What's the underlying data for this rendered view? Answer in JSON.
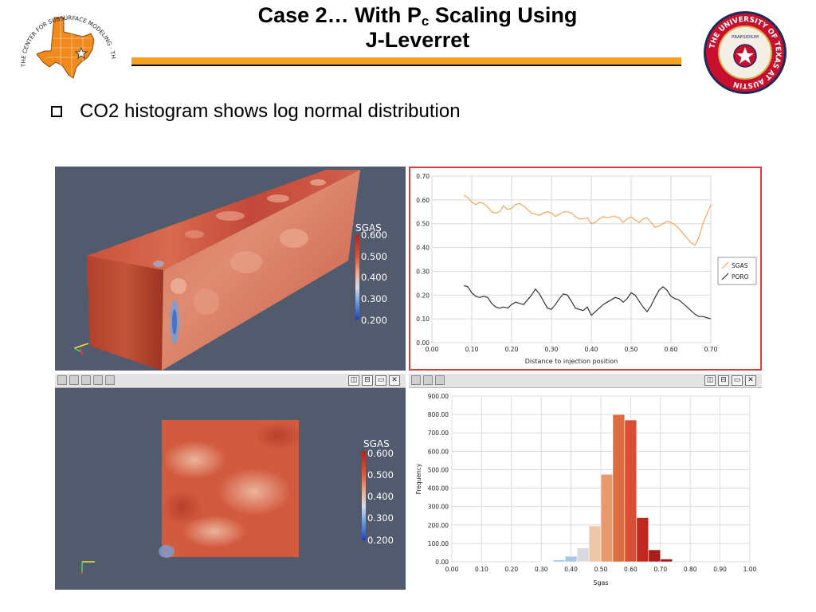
{
  "title": {
    "line1_pre": "Case 2… With P",
    "line1_sub": "c",
    "line1_post": " Scaling Using",
    "line2": "J-Leverret"
  },
  "bullet": "CO2 histogram shows log normal distribution",
  "logo_left": {
    "text": "THE CENTER FOR SUBSURFACE MODELING · THE UNIVERSITY OF TEXAS AT AUSTIN"
  },
  "logo_right": {
    "text": "THE UNIVERSITY OF TEXAS AT AUSTIN",
    "seal_text": "PRAESIDIUM"
  },
  "colors": {
    "accent_rule": "#f5a01e",
    "viewport_bg": "#525a6e",
    "plot_border": "#d93c3c",
    "sgas_line": "#f2a65a",
    "poro_line": "#333333",
    "ut_burnt_orange": "#bf5700",
    "ut_red": "#c8102e"
  },
  "viewport3d": {
    "legend_title": "SGAS",
    "legend_ticks": [
      "0.600",
      "0.500",
      "0.400",
      "0.300",
      "0.200"
    ]
  },
  "viewport2d": {
    "legend_title": "SGAS",
    "legend_ticks": [
      "0.600",
      "0.500",
      "0.400",
      "0.300",
      "0.200"
    ]
  },
  "toolbar_buttons": [
    "◫",
    "⊟",
    "▭",
    "✕"
  ],
  "chart_data": [
    {
      "type": "line",
      "xlabel": "Distance to injection position",
      "xlim": [
        0,
        0.7
      ],
      "ylim": [
        0,
        0.7
      ],
      "xticks": [
        "0.00",
        "0.10",
        "0.20",
        "0.30",
        "0.40",
        "0.50",
        "0.60",
        "0.70"
      ],
      "yticks": [
        "0.00",
        "0.10",
        "0.20",
        "0.30",
        "0.40",
        "0.50",
        "0.60",
        "0.70"
      ],
      "grid": true,
      "legend_position": "right",
      "series": [
        {
          "name": "SGAS",
          "x": [
            0.08,
            0.09,
            0.1,
            0.11,
            0.12,
            0.13,
            0.14,
            0.15,
            0.16,
            0.17,
            0.18,
            0.19,
            0.2,
            0.21,
            0.22,
            0.23,
            0.24,
            0.25,
            0.26,
            0.27,
            0.28,
            0.29,
            0.3,
            0.31,
            0.32,
            0.33,
            0.34,
            0.35,
            0.36,
            0.37,
            0.38,
            0.39,
            0.4,
            0.41,
            0.42,
            0.43,
            0.44,
            0.45,
            0.46,
            0.47,
            0.48,
            0.49,
            0.5,
            0.51,
            0.52,
            0.53,
            0.54,
            0.55,
            0.56,
            0.57,
            0.58,
            0.59,
            0.6,
            0.61,
            0.62,
            0.63,
            0.64,
            0.65,
            0.66,
            0.67,
            0.68,
            0.69,
            0.7
          ],
          "y": [
            0.62,
            0.61,
            0.59,
            0.58,
            0.59,
            0.585,
            0.57,
            0.55,
            0.545,
            0.55,
            0.575,
            0.56,
            0.565,
            0.58,
            0.585,
            0.575,
            0.56,
            0.545,
            0.54,
            0.535,
            0.545,
            0.55,
            0.545,
            0.53,
            0.54,
            0.55,
            0.55,
            0.545,
            0.53,
            0.52,
            0.52,
            0.525,
            0.5,
            0.505,
            0.52,
            0.53,
            0.525,
            0.53,
            0.53,
            0.525,
            0.505,
            0.52,
            0.53,
            0.515,
            0.505,
            0.52,
            0.525,
            0.505,
            0.485,
            0.49,
            0.5,
            0.51,
            0.505,
            0.495,
            0.48,
            0.46,
            0.44,
            0.42,
            0.41,
            0.44,
            0.5,
            0.54,
            0.58
          ]
        },
        {
          "name": "PORO",
          "x": [
            0.08,
            0.09,
            0.1,
            0.11,
            0.12,
            0.13,
            0.14,
            0.15,
            0.16,
            0.17,
            0.18,
            0.19,
            0.2,
            0.21,
            0.22,
            0.23,
            0.24,
            0.25,
            0.26,
            0.27,
            0.28,
            0.29,
            0.3,
            0.31,
            0.32,
            0.33,
            0.34,
            0.35,
            0.36,
            0.37,
            0.38,
            0.39,
            0.4,
            0.41,
            0.42,
            0.43,
            0.44,
            0.45,
            0.46,
            0.47,
            0.48,
            0.49,
            0.5,
            0.51,
            0.52,
            0.53,
            0.54,
            0.55,
            0.56,
            0.57,
            0.58,
            0.59,
            0.6,
            0.61,
            0.62,
            0.63,
            0.64,
            0.65,
            0.66,
            0.67,
            0.68,
            0.69,
            0.7
          ],
          "y": [
            0.24,
            0.235,
            0.21,
            0.195,
            0.19,
            0.195,
            0.19,
            0.165,
            0.15,
            0.145,
            0.15,
            0.145,
            0.16,
            0.17,
            0.165,
            0.16,
            0.18,
            0.2,
            0.225,
            0.205,
            0.175,
            0.145,
            0.14,
            0.16,
            0.185,
            0.205,
            0.2,
            0.175,
            0.145,
            0.14,
            0.135,
            0.15,
            0.115,
            0.13,
            0.145,
            0.16,
            0.17,
            0.18,
            0.19,
            0.185,
            0.17,
            0.185,
            0.21,
            0.2,
            0.175,
            0.15,
            0.13,
            0.155,
            0.19,
            0.22,
            0.235,
            0.22,
            0.195,
            0.185,
            0.18,
            0.165,
            0.15,
            0.135,
            0.12,
            0.11,
            0.11,
            0.105,
            0.1
          ]
        }
      ]
    },
    {
      "type": "bar",
      "xlabel": "Sgas",
      "ylabel": "Frequency",
      "xlim": [
        0,
        1
      ],
      "ylim": [
        0,
        900
      ],
      "xticks": [
        "0.00",
        "0.10",
        "0.20",
        "0.30",
        "0.40",
        "0.50",
        "0.60",
        "0.70",
        "0.80",
        "0.90",
        "1.00"
      ],
      "yticks": [
        "0.00",
        "100.00",
        "200.00",
        "300.00",
        "400.00",
        "500.00",
        "600.00",
        "700.00",
        "800.00",
        "900.00"
      ],
      "grid": true,
      "bins": [
        {
          "x0": 0.3,
          "x1": 0.34,
          "value": 2,
          "color": "#a8c4e8"
        },
        {
          "x0": 0.34,
          "x1": 0.38,
          "value": 10,
          "color": "#a8c4e8"
        },
        {
          "x0": 0.38,
          "x1": 0.42,
          "value": 30,
          "color": "#a8c8ea"
        },
        {
          "x0": 0.42,
          "x1": 0.46,
          "value": 75,
          "color": "#d8dadf"
        },
        {
          "x0": 0.46,
          "x1": 0.5,
          "value": 195,
          "color": "#edc8a8"
        },
        {
          "x0": 0.5,
          "x1": 0.54,
          "value": 475,
          "color": "#e79a6e"
        },
        {
          "x0": 0.54,
          "x1": 0.58,
          "value": 800,
          "color": "#dc6c42"
        },
        {
          "x0": 0.58,
          "x1": 0.62,
          "value": 770,
          "color": "#d84f34"
        },
        {
          "x0": 0.62,
          "x1": 0.66,
          "value": 240,
          "color": "#c0281f"
        },
        {
          "x0": 0.66,
          "x1": 0.7,
          "value": 65,
          "color": "#aa1e1a"
        },
        {
          "x0": 0.7,
          "x1": 0.74,
          "value": 15,
          "color": "#9e1a16"
        }
      ]
    }
  ]
}
